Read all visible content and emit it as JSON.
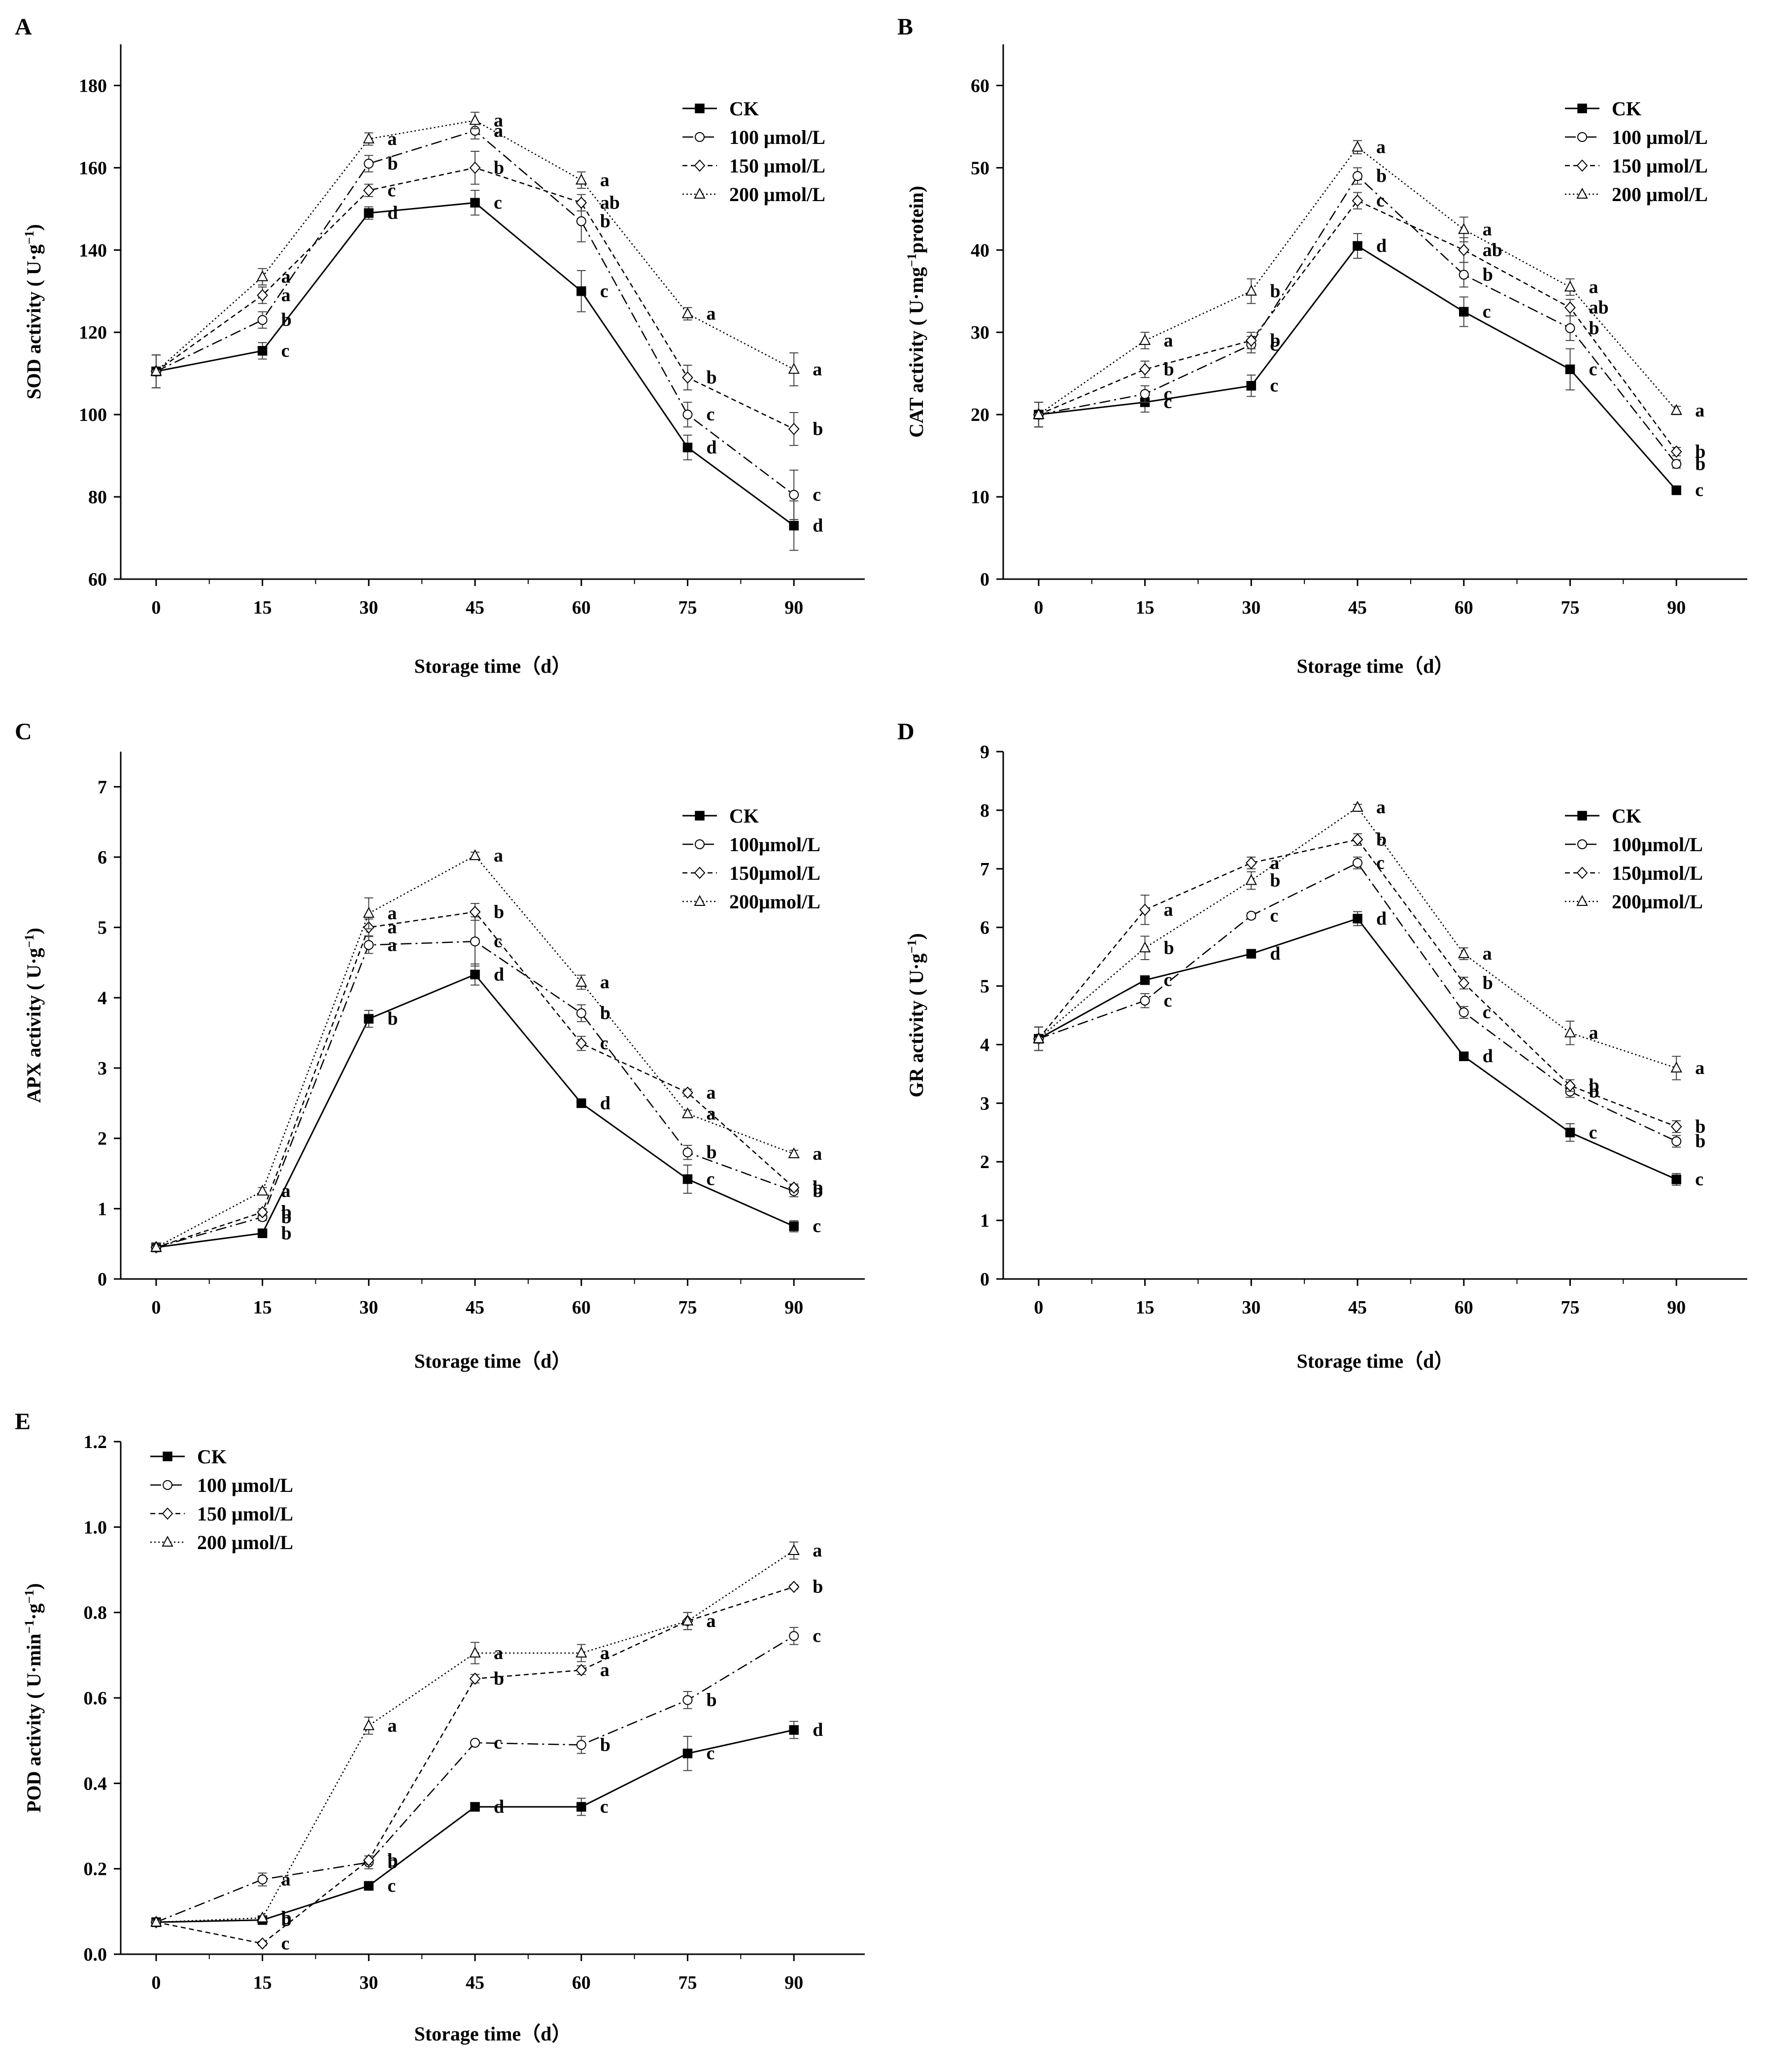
{
  "chart_data": [
    {
      "panel": "A",
      "type": "line",
      "xlabel": "Storage time（d）",
      "ylabel": "SOD activity ( U·g⁻¹)",
      "x": [
        0,
        15,
        30,
        45,
        60,
        75,
        90
      ],
      "xticks": [
        "0",
        "15",
        "30",
        "45",
        "60",
        "75",
        "90"
      ],
      "ylim": [
        60,
        190
      ],
      "yticks": [
        60,
        80,
        100,
        120,
        140,
        160,
        180
      ],
      "ytick_labels": [
        "60",
        "80",
        "100",
        "120",
        "140",
        "160",
        "180"
      ],
      "legend": "top-right",
      "series": [
        {
          "name": "CK",
          "marker": "square",
          "dash": "solid",
          "values": [
            110.5,
            115.5,
            149,
            151.5,
            130,
            92,
            73
          ],
          "err": [
            4,
            2,
            1.5,
            3,
            5,
            3,
            6
          ],
          "letters": [
            "",
            "c",
            "d",
            "c",
            "c",
            "d",
            "d"
          ]
        },
        {
          "name": "100 μmol/L",
          "marker": "circle",
          "dash": "dashdot",
          "values": [
            110.5,
            123,
            161,
            169,
            147,
            100,
            80.5
          ],
          "err": [
            4,
            2,
            2,
            2,
            5,
            3,
            6
          ],
          "letters": [
            "",
            "b",
            "b",
            "a",
            "b",
            "c",
            "c"
          ]
        },
        {
          "name": "150 μmol/L",
          "marker": "diamond",
          "dash": "dash",
          "values": [
            110.5,
            129,
            154.5,
            160,
            151.5,
            109,
            96.5
          ],
          "err": [
            4,
            2,
            1.5,
            4,
            2,
            3,
            4
          ],
          "letters": [
            "",
            "a",
            "c",
            "b",
            "ab",
            "b",
            "b"
          ]
        },
        {
          "name": "200 μmol/L",
          "marker": "triangle",
          "dash": "dot",
          "values": [
            110.5,
            133.5,
            167,
            171.5,
            157,
            124.5,
            111
          ],
          "err": [
            4,
            2,
            1.5,
            2,
            2,
            1.5,
            4
          ],
          "letters": [
            "",
            "a",
            "a",
            "a",
            "a",
            "a",
            "a"
          ]
        }
      ]
    },
    {
      "panel": "B",
      "type": "line",
      "xlabel": "Storage time（d）",
      "ylabel": "CAT activity ( U·mg⁻¹protein)",
      "x": [
        0,
        15,
        30,
        45,
        60,
        75,
        90
      ],
      "xticks": [
        "0",
        "15",
        "30",
        "45",
        "60",
        "75",
        "90"
      ],
      "ylim": [
        0,
        65
      ],
      "yticks": [
        0,
        10,
        20,
        30,
        40,
        50,
        60
      ],
      "ytick_labels": [
        "0",
        "10",
        "20",
        "30",
        "40",
        "50",
        "60"
      ],
      "legend": "top-right",
      "series": [
        {
          "name": "CK",
          "marker": "square",
          "dash": "solid",
          "values": [
            20,
            21.5,
            23.5,
            40.5,
            32.5,
            25.5,
            10.8
          ],
          "err": [
            1.5,
            1.2,
            1.3,
            1.5,
            1.8,
            2.5,
            0.3
          ],
          "letters": [
            "",
            "c",
            "c",
            "d",
            "c",
            "c",
            "c"
          ]
        },
        {
          "name": "100 μmol/L",
          "marker": "circle",
          "dash": "dashdot",
          "values": [
            20,
            22.5,
            28.5,
            49,
            37,
            30.5,
            14
          ],
          "err": [
            1.5,
            1,
            1,
            1,
            1.5,
            1.5,
            0.5
          ],
          "letters": [
            "",
            "c",
            "c",
            "b",
            "b",
            "b",
            "b"
          ]
        },
        {
          "name": "150 μmol/L",
          "marker": "diamond",
          "dash": "dash",
          "values": [
            20,
            25.5,
            29,
            46,
            40,
            33,
            15.5
          ],
          "err": [
            1.5,
            1,
            1,
            1,
            1.5,
            1,
            0.5
          ],
          "letters": [
            "",
            "b",
            "b",
            "c",
            "ab",
            "ab",
            "b"
          ]
        },
        {
          "name": "200 μmol/L",
          "marker": "triangle",
          "dash": "dot",
          "values": [
            20,
            29,
            35,
            52.5,
            42.5,
            35.5,
            20.5
          ],
          "err": [
            1.5,
            1,
            1.5,
            0.8,
            1.5,
            1,
            0.5
          ],
          "letters": [
            "",
            "a",
            "b",
            "a",
            "a",
            "a",
            "a"
          ]
        }
      ]
    },
    {
      "panel": "C",
      "type": "line",
      "xlabel": "Storage time（d）",
      "ylabel": "APX activity ( U·g⁻¹)",
      "x": [
        0,
        15,
        30,
        45,
        60,
        75,
        90
      ],
      "xticks": [
        "0",
        "15",
        "30",
        "45",
        "60",
        "75",
        "90"
      ],
      "ylim": [
        0,
        7.5
      ],
      "yticks": [
        0,
        1,
        2,
        3,
        4,
        5,
        6,
        7
      ],
      "ytick_labels": [
        "0",
        "1",
        "2",
        "3",
        "4",
        "5",
        "6",
        "7"
      ],
      "legend": "top-right",
      "series": [
        {
          "name": "CK",
          "marker": "square",
          "dash": "solid",
          "values": [
            0.45,
            0.65,
            3.7,
            4.33,
            2.5,
            1.42,
            0.75
          ],
          "err": [
            0.05,
            0.05,
            0.12,
            0.15,
            0.05,
            0.2,
            0.08
          ],
          "letters": [
            "",
            "b",
            "b",
            "d",
            "d",
            "c",
            "c"
          ]
        },
        {
          "name": "100μmol/L",
          "marker": "circle",
          "dash": "dashdot",
          "values": [
            0.45,
            0.88,
            4.75,
            4.8,
            3.78,
            1.8,
            1.25
          ],
          "err": [
            0.05,
            0.05,
            0.12,
            0.35,
            0.12,
            0.1,
            0.08
          ],
          "letters": [
            "",
            "b",
            "a",
            "c",
            "b",
            "b",
            "b"
          ]
        },
        {
          "name": "150μmol/L",
          "marker": "diamond",
          "dash": "dash",
          "values": [
            0.45,
            0.95,
            5,
            5.22,
            3.35,
            2.65,
            1.3
          ],
          "err": [
            0.05,
            0.05,
            0.12,
            0.12,
            0.1,
            0.05,
            0.05
          ],
          "letters": [
            "",
            "b",
            "a",
            "b",
            "c",
            "a",
            "b"
          ]
        },
        {
          "name": "200μmol/L",
          "marker": "triangle",
          "dash": "dot",
          "values": [
            0.45,
            1.25,
            5.2,
            6.02,
            4.22,
            2.35,
            1.78
          ],
          "err": [
            0.05,
            0.05,
            0.22,
            0.05,
            0.1,
            0.05,
            0.05
          ],
          "letters": [
            "",
            "a",
            "a",
            "a",
            "a",
            "a",
            "a"
          ]
        }
      ]
    },
    {
      "panel": "D",
      "type": "line",
      "xlabel": "Storage time（d）",
      "ylabel": "GR activity ( U·g⁻¹)",
      "x": [
        0,
        15,
        30,
        45,
        60,
        75,
        90
      ],
      "xticks": [
        "0",
        "15",
        "30",
        "45",
        "60",
        "75",
        "90"
      ],
      "ylim": [
        0,
        9
      ],
      "yticks": [
        0,
        1,
        2,
        3,
        4,
        5,
        6,
        7,
        8,
        9
      ],
      "ytick_labels": [
        "0",
        "1",
        "2",
        "3",
        "4",
        "5",
        "6",
        "7",
        "8",
        "9"
      ],
      "legend": "top-right",
      "series": [
        {
          "name": "CK",
          "marker": "square",
          "dash": "solid",
          "values": [
            4.1,
            5.1,
            5.55,
            6.15,
            3.8,
            2.5,
            1.7
          ],
          "err": [
            0.2,
            0.05,
            0.05,
            0.12,
            0.05,
            0.15,
            0.1
          ],
          "letters": [
            "",
            "c",
            "d",
            "d",
            "d",
            "c",
            "c"
          ]
        },
        {
          "name": "100μmol/L",
          "marker": "circle",
          "dash": "dashdot",
          "values": [
            4.1,
            4.75,
            6.2,
            7.1,
            4.55,
            3.2,
            2.35
          ],
          "err": [
            0.2,
            0.12,
            0.05,
            0.1,
            0.1,
            0.1,
            0.1
          ],
          "letters": [
            "",
            "c",
            "c",
            "c",
            "c",
            "b",
            "b"
          ]
        },
        {
          "name": "150μmol/L",
          "marker": "diamond",
          "dash": "dash",
          "values": [
            4.1,
            6.3,
            7.1,
            7.5,
            5.05,
            3.3,
            2.6
          ],
          "err": [
            0.2,
            0.25,
            0.1,
            0.1,
            0.1,
            0.1,
            0.1
          ],
          "letters": [
            "",
            "a",
            "a",
            "b",
            "b",
            "b",
            "b"
          ]
        },
        {
          "name": "200μmol/L",
          "marker": "triangle",
          "dash": "dot",
          "values": [
            4.1,
            5.65,
            6.8,
            8.05,
            5.55,
            4.2,
            3.6
          ],
          "err": [
            0.2,
            0.2,
            0.15,
            0.05,
            0.1,
            0.2,
            0.2
          ],
          "letters": [
            "",
            "b",
            "b",
            "a",
            "a",
            "a",
            "a"
          ]
        }
      ]
    },
    {
      "panel": "E",
      "type": "line",
      "xlabel": "Storage time（d）",
      "ylabel": "POD activity ( U·min⁻¹·g⁻¹)",
      "x": [
        0,
        15,
        30,
        45,
        60,
        75,
        90
      ],
      "xticks": [
        "0",
        "15",
        "30",
        "45",
        "60",
        "75",
        "90"
      ],
      "ylim": [
        0,
        1.2
      ],
      "yticks": [
        0,
        0.2,
        0.4,
        0.6,
        0.8,
        1.0,
        1.2
      ],
      "ytick_labels": [
        "0.0",
        "0.2",
        "0.4",
        "0.6",
        "0.8",
        "1.0",
        "1.2"
      ],
      "legend": "top-left",
      "series": [
        {
          "name": "CK",
          "marker": "square",
          "dash": "solid",
          "values": [
            0.075,
            0.08,
            0.16,
            0.345,
            0.345,
            0.47,
            0.525
          ],
          "err": [
            0.005,
            0.01,
            0.005,
            0.005,
            0.02,
            0.04,
            0.02
          ],
          "letters": [
            "",
            "b",
            "c",
            "d",
            "c",
            "c",
            "d"
          ]
        },
        {
          "name": "100 μmol/L",
          "marker": "circle",
          "dash": "dashdot",
          "values": [
            0.075,
            0.175,
            0.215,
            0.495,
            0.49,
            0.595,
            0.745
          ],
          "err": [
            0.005,
            0.015,
            0.015,
            0.005,
            0.02,
            0.02,
            0.02
          ],
          "letters": [
            "",
            "a",
            "b",
            "c",
            "b",
            "b",
            "c"
          ]
        },
        {
          "name": "150 μmol/L",
          "marker": "diamond",
          "dash": "dash",
          "values": [
            0.075,
            0.025,
            0.22,
            0.645,
            0.665,
            0.78,
            0.86
          ],
          "err": [
            0.005,
            0.005,
            0.01,
            0.01,
            0.01,
            0.02,
            0.005
          ],
          "letters": [
            "",
            "c",
            "b",
            "b",
            "a",
            "a",
            "b"
          ]
        },
        {
          "name": "200 μmol/L",
          "marker": "triangle",
          "dash": "dot",
          "values": [
            0.075,
            0.085,
            0.535,
            0.705,
            0.705,
            0.78,
            0.945
          ],
          "err": [
            0.005,
            0.005,
            0.02,
            0.025,
            0.02,
            0.02,
            0.02
          ],
          "letters": [
            "",
            "b",
            "a",
            "a",
            "a",
            "a",
            "a"
          ]
        }
      ]
    }
  ]
}
